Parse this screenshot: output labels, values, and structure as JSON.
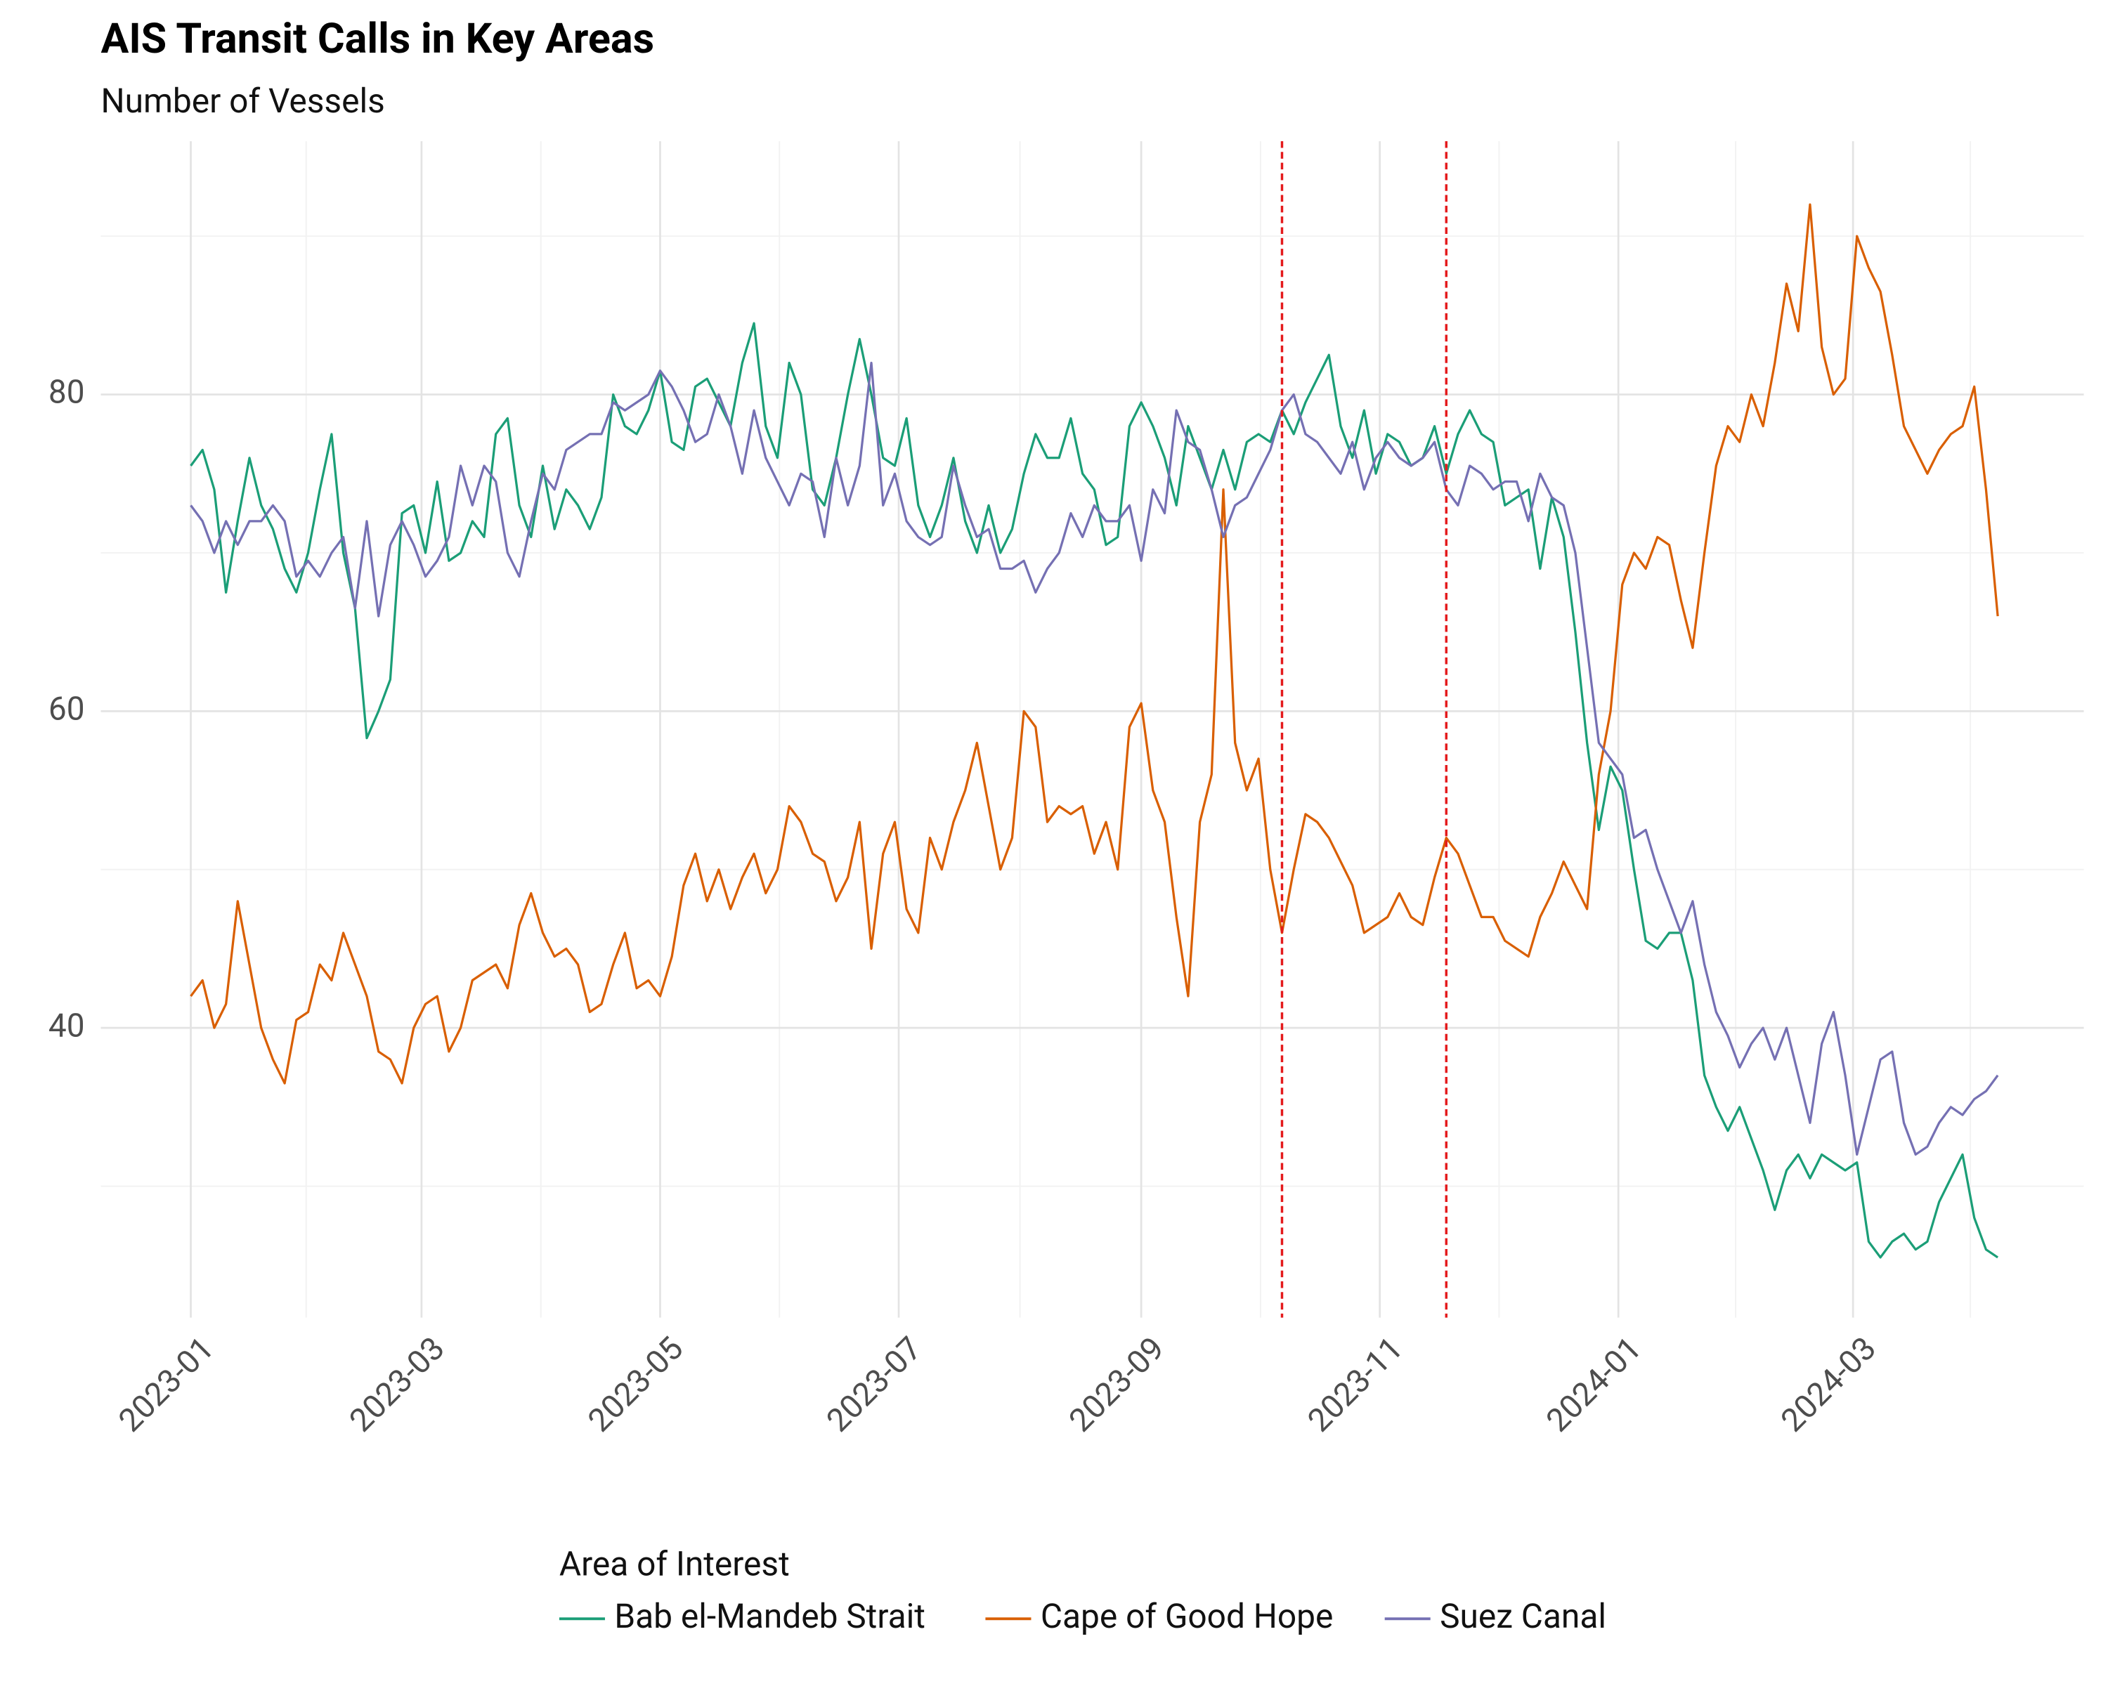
{
  "chart_data": {
    "type": "line",
    "title": "AIS Transit Calls in Key Areas",
    "subtitle": "Number of Vessels",
    "legend_title": "Area of Interest",
    "legend": "bottom",
    "grid": true,
    "x": [
      0,
      3,
      6,
      9,
      12,
      15,
      18,
      21,
      24,
      27,
      30,
      33,
      36,
      39,
      42,
      45,
      48,
      51,
      54,
      57,
      60,
      63,
      66,
      69,
      72,
      75,
      78,
      81,
      84,
      87,
      90,
      93,
      96,
      99,
      102,
      105,
      108,
      111,
      114,
      117,
      120,
      123,
      126,
      129,
      132,
      135,
      138,
      141,
      144,
      147,
      150,
      153,
      156,
      159,
      162,
      165,
      168,
      171,
      174,
      177,
      180,
      183,
      186,
      189,
      192,
      195,
      198,
      201,
      204,
      207,
      210,
      213,
      216,
      219,
      222,
      225,
      228,
      231,
      234,
      237,
      240,
      243,
      246,
      249,
      252,
      255,
      258,
      261,
      264,
      267,
      270,
      273,
      276,
      279,
      282,
      285,
      288,
      291,
      294,
      297,
      300,
      303,
      306,
      309,
      312,
      315,
      318,
      321,
      324,
      327,
      330,
      333,
      336,
      339,
      342,
      345,
      348,
      351,
      354,
      357,
      360,
      363,
      366,
      369,
      372,
      375,
      378,
      381,
      384,
      387,
      390,
      393,
      396,
      399,
      402,
      405,
      408,
      411,
      414,
      417,
      420,
      423,
      426,
      429,
      432,
      435,
      438,
      441,
      444,
      447,
      450,
      453,
      456,
      459,
      462
    ],
    "xlim": [
      -23,
      484
    ],
    "xticks": [
      {
        "value": 0,
        "label": "2023-01"
      },
      {
        "value": 59,
        "label": "2023-03"
      },
      {
        "value": 120,
        "label": "2023-05"
      },
      {
        "value": 181,
        "label": "2023-07"
      },
      {
        "value": 243,
        "label": "2023-09"
      },
      {
        "value": 304,
        "label": "2023-11"
      },
      {
        "value": 365,
        "label": "2024-01"
      },
      {
        "value": 425,
        "label": "2024-03"
      }
    ],
    "ylim": [
      21.7,
      96
    ],
    "yticks": [
      40,
      60,
      80
    ],
    "vlines": [
      279,
      321
    ],
    "vline_color": "#e41a1c",
    "series": [
      {
        "name": "Bab el-Mandeb Strait",
        "color": "#1b9e77",
        "values": [
          75.5,
          76.5,
          74,
          67.5,
          72,
          76,
          73,
          71.5,
          69,
          67.5,
          70,
          74,
          77.5,
          70,
          66.5,
          58.3,
          60,
          62,
          72.5,
          73,
          70,
          74.5,
          69.5,
          70,
          72,
          71,
          77.5,
          78.5,
          73,
          71,
          75.5,
          71.5,
          74,
          73,
          71.5,
          73.5,
          80,
          78,
          77.5,
          79,
          81.5,
          77,
          76.5,
          80.5,
          81,
          79.5,
          78,
          82,
          84.5,
          78,
          76,
          82,
          80,
          74,
          73,
          76,
          80,
          83.5,
          80,
          76,
          75.5,
          78.5,
          73,
          71,
          73,
          76,
          72,
          70,
          73,
          70,
          71.5,
          75,
          77.5,
          76,
          76,
          78.5,
          75,
          74,
          70.5,
          71,
          78,
          79.5,
          78,
          76,
          73,
          78,
          76,
          74,
          76.5,
          74,
          77,
          77.5,
          77,
          79,
          77.5,
          79.5,
          81,
          82.5,
          78,
          76,
          79,
          75,
          77.5,
          77,
          75.5,
          76,
          78,
          75,
          77.5,
          79,
          77.5,
          77,
          73,
          73.5,
          74,
          69,
          73.5,
          71,
          65,
          58,
          52.5,
          56.5,
          55,
          50,
          45.5,
          45,
          46,
          46,
          43,
          37,
          35,
          33.5,
          35,
          33,
          31,
          28.5,
          31,
          32,
          30.5,
          32,
          31.5,
          31,
          31.5,
          26.5,
          25.5,
          26.5,
          27,
          26,
          26.5,
          29,
          30.5,
          32,
          28,
          26,
          25.5
        ]
      },
      {
        "name": "Cape of Good Hope",
        "color": "#d95f02",
        "values": [
          42,
          43,
          40,
          41.5,
          48,
          44,
          40,
          38,
          36.5,
          40.5,
          41,
          44,
          43,
          46,
          44,
          42,
          38.5,
          38,
          36.5,
          40,
          41.5,
          42,
          38.5,
          40,
          43,
          43.5,
          44,
          42.5,
          46.5,
          48.5,
          46,
          44.5,
          45,
          44,
          41,
          41.5,
          44,
          46,
          42.5,
          43,
          42,
          44.5,
          49,
          51,
          48,
          50,
          47.5,
          49.5,
          51,
          48.5,
          50,
          54,
          53,
          51,
          50.5,
          48,
          49.5,
          53,
          45,
          51,
          53,
          47.5,
          46,
          52,
          50,
          53,
          55,
          58,
          54,
          50,
          52,
          60,
          59,
          53,
          54,
          53.5,
          54,
          51,
          53,
          50,
          59,
          60.5,
          55,
          53,
          47,
          42,
          53,
          56,
          74,
          58,
          55,
          57,
          50,
          46,
          50,
          53.5,
          53,
          52,
          50.5,
          49,
          46,
          46.5,
          47,
          48.5,
          47,
          46.5,
          49.5,
          52,
          51,
          49,
          47,
          47,
          45.5,
          45,
          44.5,
          47,
          48.5,
          50.5,
          49,
          47.5,
          56,
          60,
          68,
          70,
          69,
          71,
          70.5,
          67,
          64,
          70,
          75.5,
          78,
          77,
          80,
          78,
          82,
          87,
          84,
          92,
          83,
          80,
          81,
          90,
          88,
          86.5,
          82.5,
          78,
          76.5,
          75,
          76.5,
          77.5,
          78,
          80.5,
          74,
          66
        ]
      },
      {
        "name": "Suez Canal",
        "color": "#7570b3",
        "values": [
          73,
          72,
          70,
          72,
          70.5,
          72,
          72,
          73,
          72,
          68.5,
          69.5,
          68.5,
          70,
          71,
          66.5,
          72,
          66,
          70.5,
          72,
          70.5,
          68.5,
          69.5,
          71,
          75.5,
          73,
          75.5,
          74.5,
          70,
          68.5,
          72,
          75,
          74,
          76.5,
          77,
          77.5,
          77.5,
          79.5,
          79,
          79.5,
          80,
          81.5,
          80.5,
          79,
          77,
          77.5,
          80,
          78,
          75,
          79,
          76,
          74.5,
          73,
          75,
          74.5,
          71,
          76,
          73,
          75.5,
          82,
          73,
          75,
          72,
          71,
          70.5,
          71,
          75.5,
          73,
          71,
          71.5,
          69,
          69,
          69.5,
          67.5,
          69,
          70,
          72.5,
          71,
          73,
          72,
          72,
          73,
          69.5,
          74,
          72.5,
          79,
          77,
          76.5,
          74,
          71,
          73,
          73.5,
          75,
          76.5,
          79,
          80,
          77.5,
          77,
          76,
          75,
          77,
          74,
          76,
          77,
          76,
          75.5,
          76,
          77,
          74,
          73,
          75.5,
          75,
          74,
          74.5,
          74.5,
          72,
          75,
          73.5,
          73,
          70,
          64,
          58,
          57,
          56,
          52,
          52.5,
          50,
          48,
          46,
          48,
          44,
          41,
          39.5,
          37.5,
          39,
          40,
          38,
          40,
          37,
          34,
          39,
          41,
          37,
          32,
          35,
          38,
          38.5,
          34,
          32,
          32.5,
          34,
          35,
          34.5,
          35.5,
          36,
          37
        ]
      }
    ]
  }
}
